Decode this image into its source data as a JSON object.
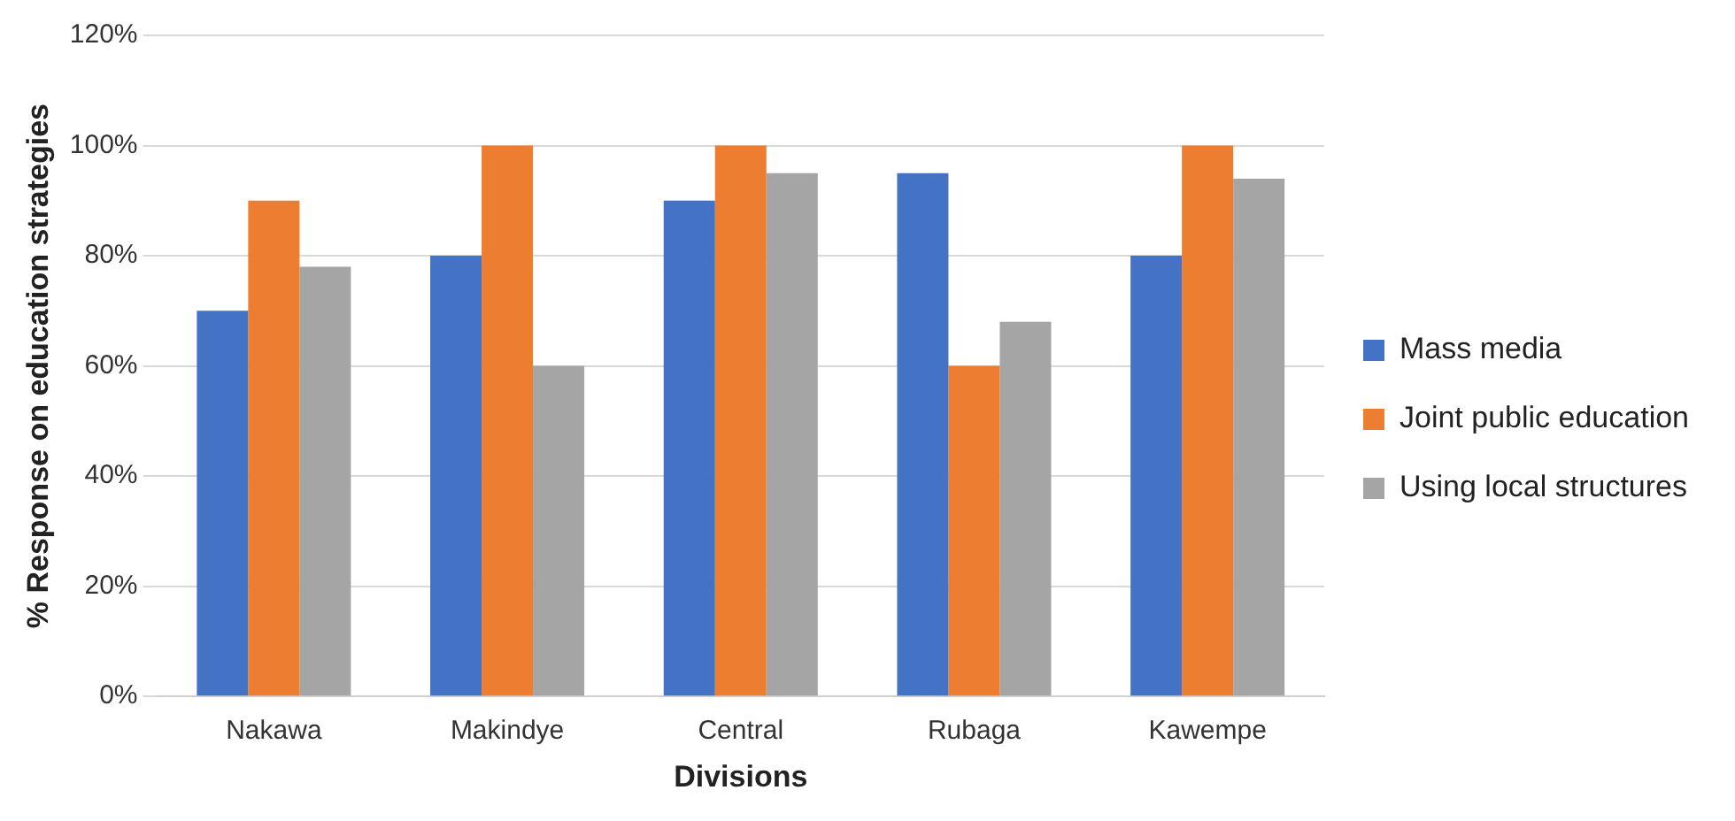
{
  "chart_data": {
    "type": "bar",
    "xlabel": "Divisions",
    "ylabel": "% Response on education strategies",
    "categories": [
      "Nakawa",
      "Makindye",
      "Central",
      "Rubaga",
      "Kawempe"
    ],
    "series": [
      {
        "name": "Mass media",
        "color": "#4472c4",
        "values": [
          70,
          80,
          90,
          95,
          80
        ]
      },
      {
        "name": "Joint public education",
        "color": "#ed7d31",
        "values": [
          90,
          100,
          100,
          60,
          100
        ]
      },
      {
        "name": "Using local structures",
        "color": "#a5a5a5",
        "values": [
          78,
          60,
          95,
          68,
          94
        ]
      }
    ],
    "ylim": [
      0,
      120
    ],
    "yticks": [
      {
        "value": 0,
        "label": "0%"
      },
      {
        "value": 20,
        "label": "20%"
      },
      {
        "value": 40,
        "label": "40%"
      },
      {
        "value": 60,
        "label": "60%"
      },
      {
        "value": 80,
        "label": "80%"
      },
      {
        "value": 100,
        "label": "100%"
      },
      {
        "value": 120,
        "label": "120%"
      }
    ],
    "grid": "y",
    "legend": "right"
  }
}
